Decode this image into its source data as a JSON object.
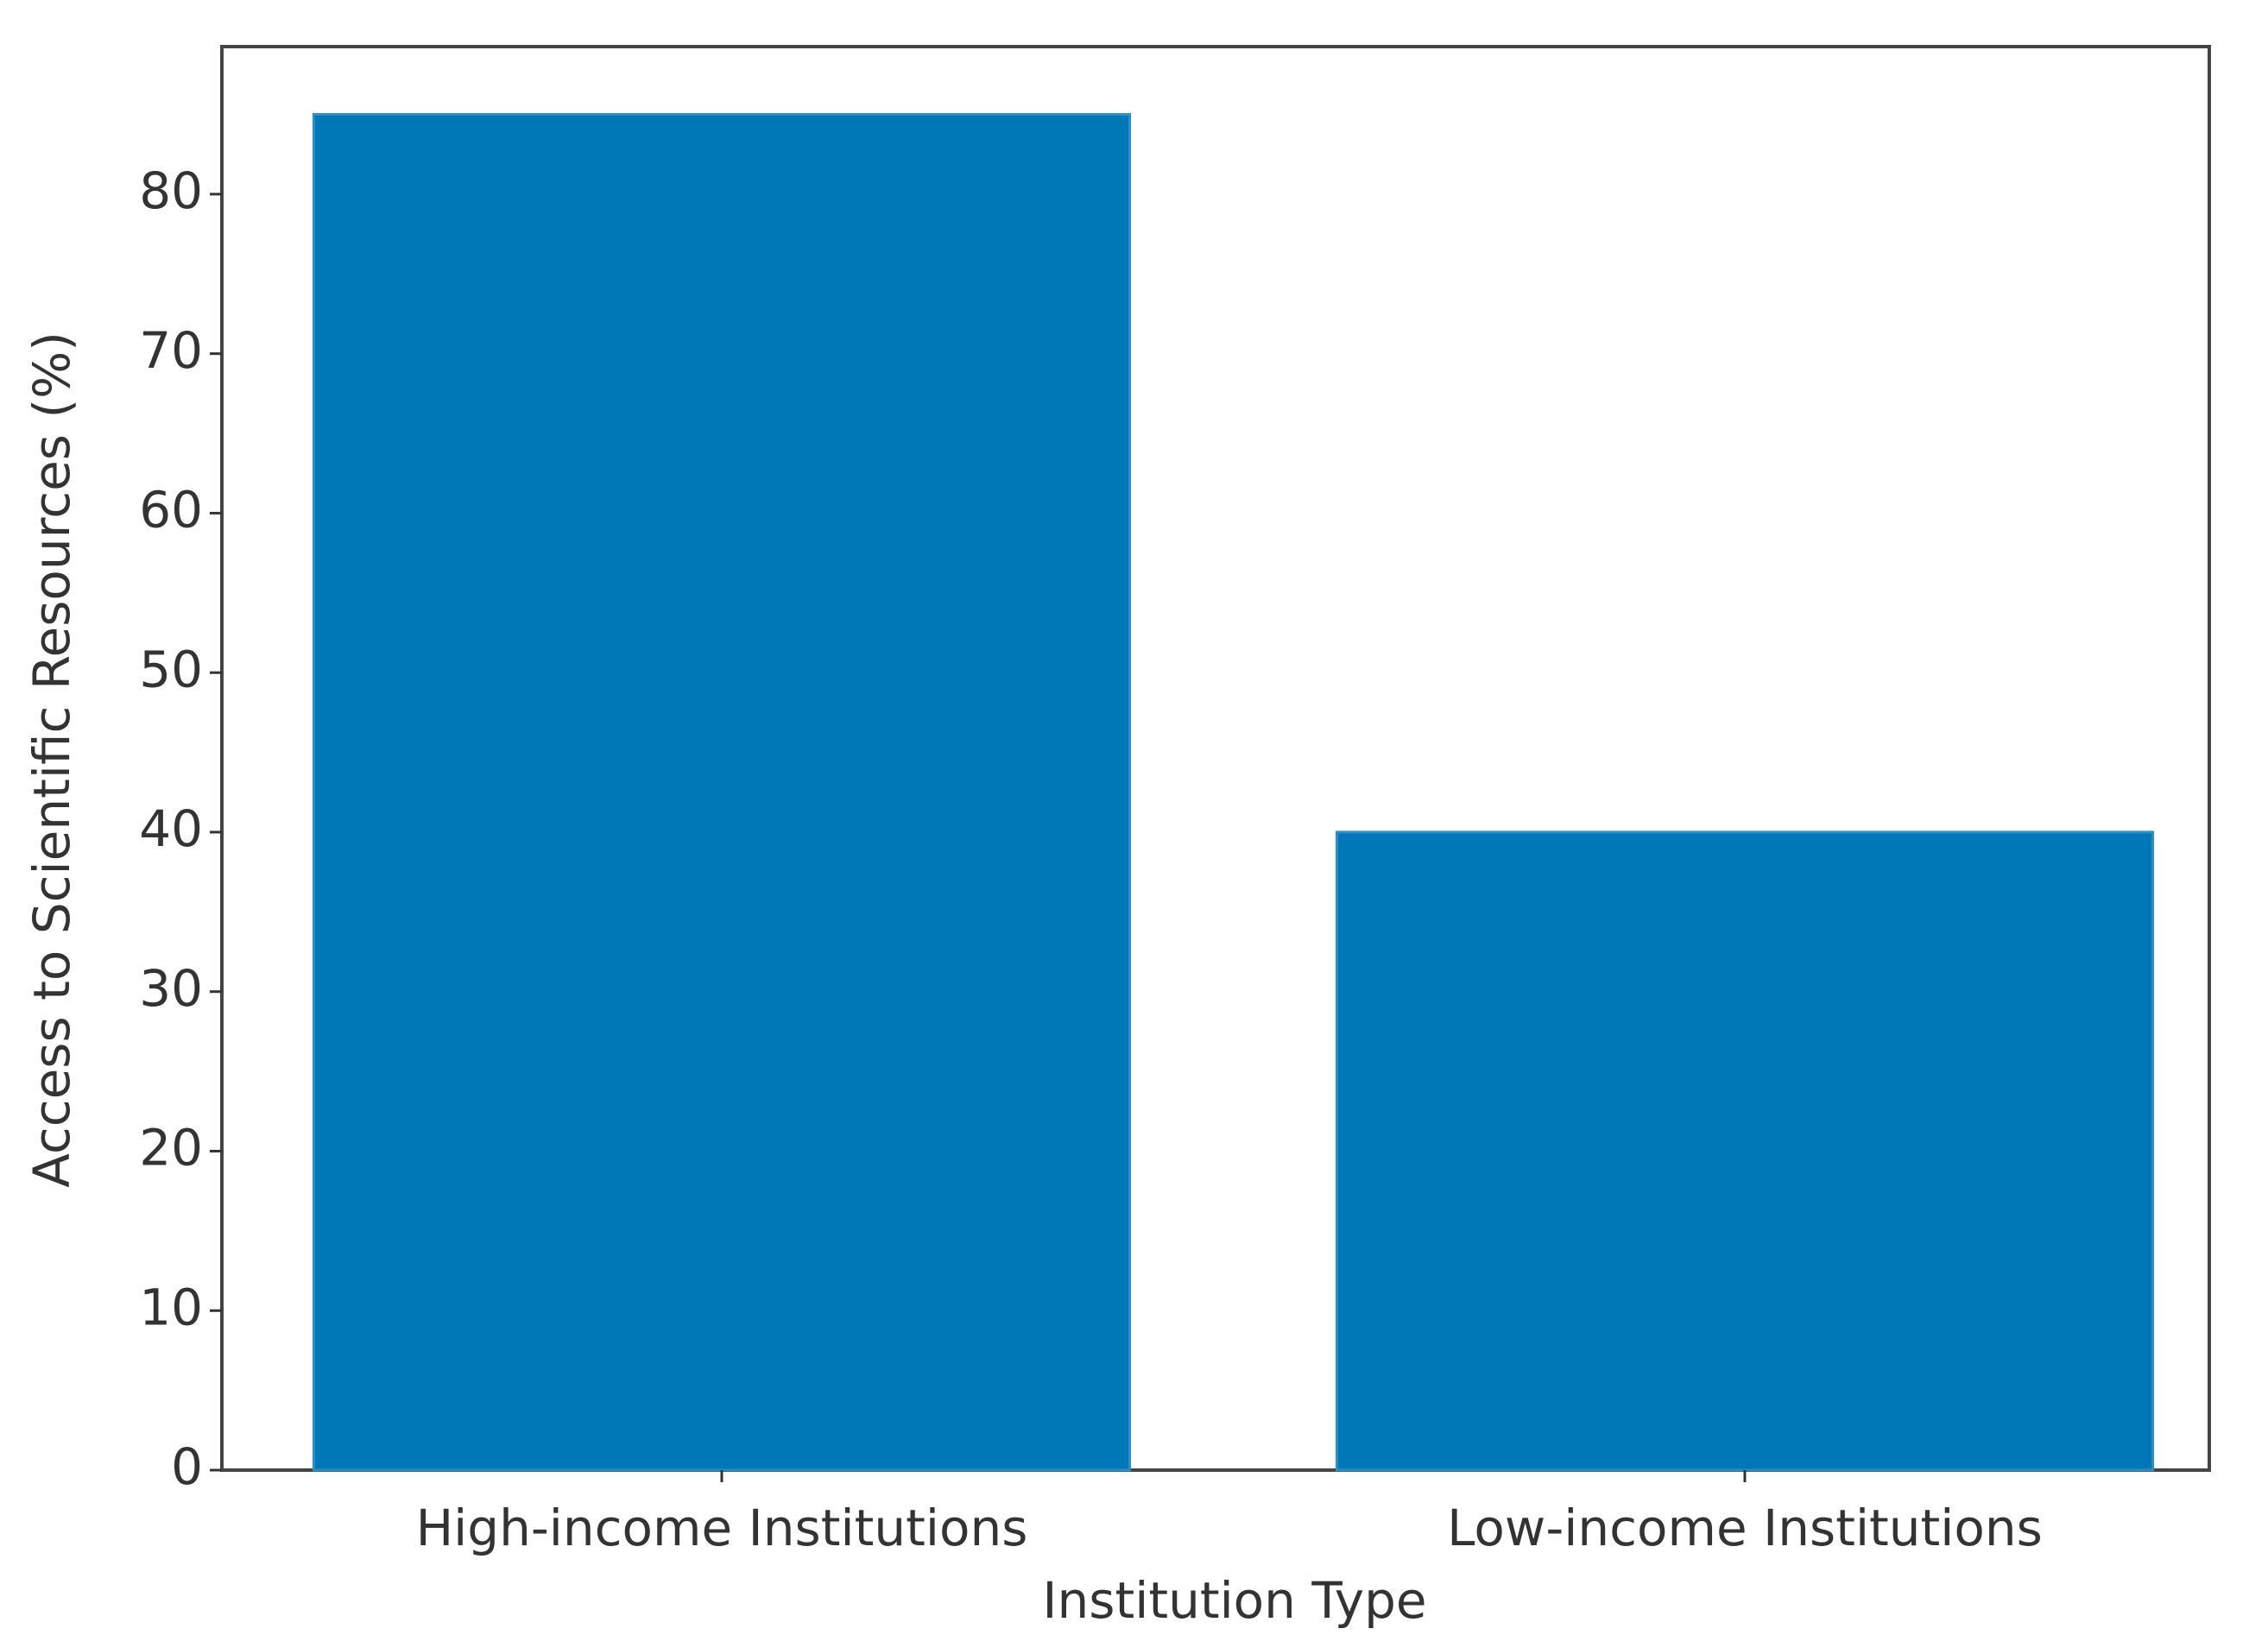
{
  "chart_data": {
    "type": "bar",
    "x_label": "Institution Type",
    "y_label": "Access to Scientific Resources (%)",
    "categories": [
      "High-income Institutions",
      "Low-income Institutions"
    ],
    "values": [
      85,
      40
    ],
    "color": "#0077b6",
    "ylim": [
      0,
      89.25
    ],
    "yticks": [
      0,
      10,
      20,
      30,
      40,
      50,
      60,
      70,
      80
    ]
  }
}
